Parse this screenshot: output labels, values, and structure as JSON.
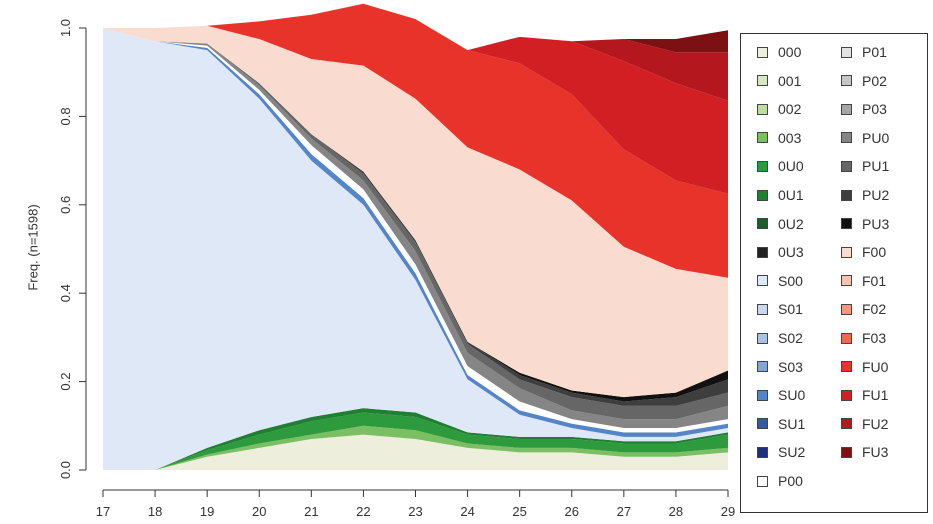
{
  "chart_data": {
    "type": "area",
    "stacked": true,
    "normalized": true,
    "ylabel": "Freq. (n=1598)",
    "xlabel": "",
    "xlim": [
      17,
      29
    ],
    "ylim": [
      0,
      1
    ],
    "x_ticks": [
      "17",
      "18",
      "19",
      "20",
      "21",
      "22",
      "23",
      "24",
      "25",
      "26",
      "27",
      "28",
      "29"
    ],
    "y_ticks": [
      "0.0",
      "0.2",
      "0.4",
      "0.6",
      "0.8",
      "1.0"
    ],
    "x": [
      17,
      18,
      19,
      20,
      21,
      22,
      23,
      24,
      25,
      26,
      27,
      28,
      29
    ],
    "series": [
      {
        "name": "000",
        "color": "#eeeedd",
        "values": [
          0.0,
          0.0,
          0.03,
          0.05,
          0.07,
          0.08,
          0.07,
          0.05,
          0.04,
          0.04,
          0.03,
          0.03,
          0.04
        ]
      },
      {
        "name": "001",
        "color": "#d8e7c6",
        "values": [
          0.0,
          0.0,
          0.0,
          0.0,
          0.0,
          0.0,
          0.0,
          0.0,
          0.0,
          0.0,
          0.0,
          0.0,
          0.0
        ]
      },
      {
        "name": "002",
        "color": "#bcdca2",
        "values": [
          0.0,
          0.0,
          0.0,
          0.0,
          0.0,
          0.0,
          0.0,
          0.0,
          0.0,
          0.0,
          0.0,
          0.0,
          0.0
        ]
      },
      {
        "name": "003",
        "color": "#7bbf63",
        "values": [
          0.0,
          0.0,
          0.005,
          0.01,
          0.01,
          0.02,
          0.02,
          0.01,
          0.01,
          0.01,
          0.01,
          0.01,
          0.01
        ]
      },
      {
        "name": "0U0",
        "color": "#2e9a3e",
        "values": [
          0.0,
          0.0,
          0.01,
          0.02,
          0.03,
          0.03,
          0.03,
          0.02,
          0.02,
          0.02,
          0.02,
          0.02,
          0.03
        ]
      },
      {
        "name": "0U1",
        "color": "#1f8032",
        "values": [
          0.0,
          0.0,
          0.005,
          0.01,
          0.01,
          0.01,
          0.01,
          0.005,
          0.005,
          0.005,
          0.005,
          0.005,
          0.005
        ]
      },
      {
        "name": "0U2",
        "color": "#1b5e2c",
        "values": [
          0.0,
          0.0,
          0.0,
          0.0,
          0.0,
          0.0,
          0.0,
          0.0,
          0.0,
          0.0,
          0.0,
          0.0,
          0.0
        ]
      },
      {
        "name": "0U3",
        "color": "#222222",
        "values": [
          0.0,
          0.0,
          0.0,
          0.0,
          0.0,
          0.0,
          0.0,
          0.0,
          0.0,
          0.0,
          0.0,
          0.0,
          0.0
        ]
      },
      {
        "name": "S00",
        "color": "#dfe8f6",
        "values": [
          1.0,
          0.97,
          0.9,
          0.75,
          0.58,
          0.46,
          0.3,
          0.12,
          0.05,
          0.02,
          0.01,
          0.01,
          0.01
        ]
      },
      {
        "name": "S01",
        "color": "#c9d8ee",
        "values": [
          0.0,
          0.0,
          0.0,
          0.0,
          0.0,
          0.0,
          0.0,
          0.0,
          0.0,
          0.0,
          0.0,
          0.0,
          0.0
        ]
      },
      {
        "name": "S02",
        "color": "#a9c2e3",
        "values": [
          0.0,
          0.0,
          0.0,
          0.0,
          0.0,
          0.0,
          0.0,
          0.0,
          0.0,
          0.0,
          0.0,
          0.0,
          0.0
        ]
      },
      {
        "name": "S03",
        "color": "#7ea6d8",
        "values": [
          0.0,
          0.0,
          0.0,
          0.0,
          0.0,
          0.0,
          0.0,
          0.0,
          0.0,
          0.0,
          0.0,
          0.0,
          0.0
        ]
      },
      {
        "name": "SU0",
        "color": "#5585c9",
        "values": [
          0.0,
          0.0,
          0.005,
          0.01,
          0.015,
          0.015,
          0.015,
          0.01,
          0.01,
          0.01,
          0.01,
          0.01,
          0.01
        ]
      },
      {
        "name": "SU1",
        "color": "#3358a8",
        "values": [
          0.0,
          0.0,
          0.0,
          0.0,
          0.0,
          0.0,
          0.0,
          0.0,
          0.0,
          0.0,
          0.0,
          0.0,
          0.0
        ]
      },
      {
        "name": "SU2",
        "color": "#1c2f7a",
        "values": [
          0.0,
          0.0,
          0.0,
          0.0,
          0.0,
          0.0,
          0.0,
          0.0,
          0.0,
          0.0,
          0.0,
          0.0,
          0.0
        ]
      },
      {
        "name": "P00",
        "color": "#ffffff",
        "values": [
          0.0,
          0.0,
          0.005,
          0.01,
          0.02,
          0.02,
          0.02,
          0.02,
          0.02,
          0.01,
          0.01,
          0.01,
          0.01
        ]
      },
      {
        "name": "P01",
        "color": "#e2e2e2",
        "values": [
          0.0,
          0.0,
          0.0,
          0.0,
          0.0,
          0.0,
          0.0,
          0.0,
          0.0,
          0.0,
          0.0,
          0.0,
          0.0
        ]
      },
      {
        "name": "P02",
        "color": "#c6c6c6",
        "values": [
          0.0,
          0.0,
          0.0,
          0.0,
          0.0,
          0.0,
          0.0,
          0.0,
          0.0,
          0.0,
          0.0,
          0.0,
          0.0
        ]
      },
      {
        "name": "P03",
        "color": "#a5a5a5",
        "values": [
          0.0,
          0.0,
          0.0,
          0.0,
          0.0,
          0.0,
          0.0,
          0.0,
          0.0,
          0.0,
          0.0,
          0.0,
          0.0
        ]
      },
      {
        "name": "PU0",
        "color": "#858585",
        "values": [
          0.0,
          0.0,
          0.005,
          0.01,
          0.015,
          0.02,
          0.03,
          0.03,
          0.03,
          0.02,
          0.02,
          0.02,
          0.03
        ]
      },
      {
        "name": "PU1",
        "color": "#666666",
        "values": [
          0.0,
          0.0,
          0.0,
          0.005,
          0.01,
          0.015,
          0.02,
          0.02,
          0.02,
          0.03,
          0.03,
          0.03,
          0.03
        ]
      },
      {
        "name": "PU2",
        "color": "#3e3e3e",
        "values": [
          0.0,
          0.0,
          0.0,
          0.0,
          0.0,
          0.005,
          0.005,
          0.005,
          0.01,
          0.01,
          0.01,
          0.02,
          0.03
        ]
      },
      {
        "name": "PU3",
        "color": "#111111",
        "values": [
          0.0,
          0.0,
          0.0,
          0.0,
          0.0,
          0.0,
          0.0,
          0.0,
          0.005,
          0.005,
          0.01,
          0.01,
          0.02
        ]
      },
      {
        "name": "F00",
        "color": "#f9dccf",
        "values": [
          0.0,
          0.03,
          0.04,
          0.1,
          0.17,
          0.24,
          0.32,
          0.44,
          0.46,
          0.43,
          0.34,
          0.28,
          0.21
        ]
      },
      {
        "name": "F01",
        "color": "#f7c2b0",
        "values": [
          0.0,
          0.0,
          0.0,
          0.0,
          0.0,
          0.0,
          0.0,
          0.0,
          0.0,
          0.0,
          0.0,
          0.0,
          0.0
        ]
      },
      {
        "name": "F02",
        "color": "#f29a7f",
        "values": [
          0.0,
          0.0,
          0.0,
          0.0,
          0.0,
          0.0,
          0.0,
          0.0,
          0.0,
          0.0,
          0.0,
          0.0,
          0.0
        ]
      },
      {
        "name": "F03",
        "color": "#ee6a4e",
        "values": [
          0.0,
          0.0,
          0.0,
          0.0,
          0.0,
          0.0,
          0.0,
          0.0,
          0.0,
          0.0,
          0.0,
          0.0,
          0.0
        ]
      },
      {
        "name": "FU0",
        "color": "#e8332a",
        "values": [
          0.0,
          0.0,
          0.0,
          0.04,
          0.1,
          0.14,
          0.18,
          0.22,
          0.24,
          0.24,
          0.22,
          0.2,
          0.19
        ]
      },
      {
        "name": "FU1",
        "color": "#d21f23",
        "values": [
          0.0,
          0.0,
          0.0,
          0.0,
          0.0,
          0.0,
          0.0,
          0.0,
          0.06,
          0.12,
          0.2,
          0.22,
          0.21
        ]
      },
      {
        "name": "FU2",
        "color": "#b4171d",
        "values": [
          0.0,
          0.0,
          0.0,
          0.0,
          0.0,
          0.0,
          0.0,
          0.0,
          0.0,
          0.0,
          0.05,
          0.07,
          0.11
        ]
      },
      {
        "name": "FU3",
        "color": "#7c1012",
        "values": [
          0.0,
          0.0,
          0.0,
          0.0,
          0.0,
          0.0,
          0.0,
          0.0,
          0.0,
          0.0,
          0.0,
          0.03,
          0.05
        ]
      }
    ],
    "legend_position": "right",
    "grid": false
  }
}
